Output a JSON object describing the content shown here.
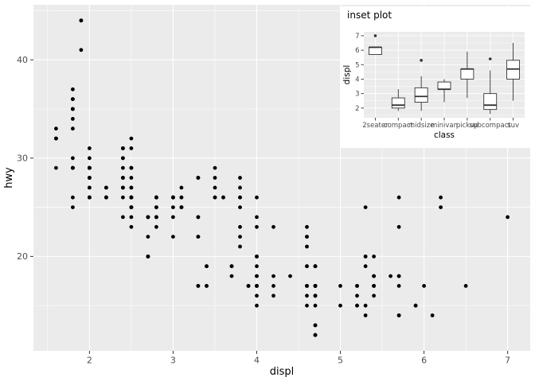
{
  "colors": {
    "figure_bg": "#FFFFFF",
    "panel_bg": "#EBEBEB",
    "grid_major": "#FFFFFF",
    "grid_minor": "#FFFFFF",
    "tick_text": "#4D4D4D",
    "tick_mark": "#333333",
    "axis_title": "#000000",
    "point": "#000000",
    "box_stroke": "#333333",
    "box_fill": "#FFFFFF",
    "inset_bg": "#FFFFFF"
  },
  "chart_data": [
    {
      "id": "main-scatter",
      "type": "scatter",
      "title": "",
      "xlabel": "displ",
      "ylabel": "hwy",
      "xlim": [
        1.33,
        7.27
      ],
      "ylim": [
        10.4,
        45.6
      ],
      "x_ticks": [
        2,
        3,
        4,
        5,
        6,
        7
      ],
      "x_minor": [
        1.5,
        2.5,
        3.5,
        4.5,
        5.5,
        6.5
      ],
      "y_ticks": [
        20,
        30,
        40
      ],
      "y_minor": [
        15,
        25,
        35,
        45
      ],
      "grid": true,
      "legend": false,
      "points": [
        [
          1.8,
          29
        ],
        [
          1.8,
          29
        ],
        [
          2.0,
          31
        ],
        [
          2.0,
          30
        ],
        [
          2.8,
          26
        ],
        [
          2.8,
          26
        ],
        [
          3.1,
          27
        ],
        [
          1.8,
          26
        ],
        [
          1.8,
          25
        ],
        [
          2.0,
          28
        ],
        [
          2.0,
          27
        ],
        [
          2.8,
          25
        ],
        [
          2.8,
          25
        ],
        [
          3.1,
          25
        ],
        [
          3.1,
          25
        ],
        [
          2.8,
          24
        ],
        [
          3.1,
          25
        ],
        [
          4.2,
          23
        ],
        [
          5.3,
          20
        ],
        [
          5.3,
          15
        ],
        [
          5.3,
          20
        ],
        [
          5.7,
          17
        ],
        [
          6.0,
          17
        ],
        [
          5.7,
          26
        ],
        [
          5.7,
          23
        ],
        [
          6.2,
          26
        ],
        [
          6.2,
          25
        ],
        [
          7.0,
          24
        ],
        [
          5.3,
          14
        ],
        [
          5.3,
          19
        ],
        [
          5.7,
          14
        ],
        [
          6.5,
          17
        ],
        [
          2.4,
          27
        ],
        [
          2.4,
          30
        ],
        [
          3.1,
          26
        ],
        [
          3.5,
          29
        ],
        [
          3.6,
          26
        ],
        [
          2.4,
          24
        ],
        [
          3.0,
          24
        ],
        [
          3.3,
          22
        ],
        [
          3.3,
          22
        ],
        [
          3.3,
          24
        ],
        [
          3.3,
          24
        ],
        [
          3.3,
          17
        ],
        [
          3.8,
          22
        ],
        [
          3.8,
          21
        ],
        [
          3.8,
          23
        ],
        [
          4.0,
          23
        ],
        [
          3.7,
          19
        ],
        [
          3.7,
          18
        ],
        [
          3.9,
          17
        ],
        [
          3.9,
          17
        ],
        [
          4.7,
          19
        ],
        [
          4.7,
          19
        ],
        [
          4.7,
          12
        ],
        [
          5.2,
          17
        ],
        [
          5.2,
          15
        ],
        [
          3.9,
          17
        ],
        [
          4.7,
          17
        ],
        [
          4.7,
          12
        ],
        [
          4.7,
          17
        ],
        [
          4.7,
          16
        ],
        [
          5.2,
          17
        ],
        [
          5.9,
          15
        ],
        [
          4.7,
          17
        ],
        [
          4.7,
          15
        ],
        [
          4.7,
          13
        ],
        [
          4.7,
          13
        ],
        [
          4.7,
          17
        ],
        [
          4.7,
          16
        ],
        [
          5.2,
          15
        ],
        [
          5.2,
          16
        ],
        [
          5.7,
          18
        ],
        [
          5.9,
          15
        ],
        [
          4.6,
          17
        ],
        [
          5.4,
          17
        ],
        [
          5.4,
          18
        ],
        [
          4.0,
          17
        ],
        [
          4.0,
          16
        ],
        [
          4.0,
          18
        ],
        [
          4.0,
          17
        ],
        [
          4.6,
          19
        ],
        [
          5.0,
          15
        ],
        [
          4.2,
          17
        ],
        [
          4.2,
          16
        ],
        [
          4.6,
          17
        ],
        [
          4.6,
          17
        ],
        [
          4.6,
          16
        ],
        [
          5.4,
          17
        ],
        [
          3.8,
          26
        ],
        [
          3.8,
          25
        ],
        [
          4.0,
          26
        ],
        [
          4.0,
          24
        ],
        [
          4.6,
          21
        ],
        [
          4.6,
          22
        ],
        [
          4.6,
          23
        ],
        [
          4.6,
          22
        ],
        [
          5.4,
          20
        ],
        [
          1.6,
          33
        ],
        [
          1.6,
          32
        ],
        [
          1.6,
          32
        ],
        [
          1.6,
          29
        ],
        [
          1.6,
          32
        ],
        [
          1.8,
          34
        ],
        [
          1.8,
          36
        ],
        [
          1.8,
          36
        ],
        [
          2.0,
          29
        ],
        [
          2.4,
          26
        ],
        [
          2.4,
          27
        ],
        [
          2.4,
          30
        ],
        [
          2.4,
          31
        ],
        [
          2.5,
          26
        ],
        [
          2.5,
          26
        ],
        [
          3.3,
          28
        ],
        [
          2.0,
          26
        ],
        [
          2.0,
          29
        ],
        [
          2.0,
          28
        ],
        [
          2.0,
          27
        ],
        [
          2.7,
          24
        ],
        [
          2.7,
          24
        ],
        [
          2.7,
          24
        ],
        [
          3.0,
          22
        ],
        [
          3.7,
          19
        ],
        [
          4.0,
          20
        ],
        [
          4.7,
          17
        ],
        [
          4.7,
          12
        ],
        [
          4.7,
          19
        ],
        [
          5.7,
          14
        ],
        [
          6.1,
          14
        ],
        [
          4.0,
          15
        ],
        [
          4.2,
          18
        ],
        [
          4.4,
          18
        ],
        [
          4.6,
          15
        ],
        [
          5.4,
          17
        ],
        [
          5.4,
          16
        ],
        [
          5.4,
          18
        ],
        [
          4.0,
          17
        ],
        [
          4.0,
          19
        ],
        [
          4.6,
          19
        ],
        [
          5.0,
          17
        ],
        [
          2.4,
          29
        ],
        [
          2.4,
          27
        ],
        [
          2.5,
          31
        ],
        [
          2.5,
          32
        ],
        [
          3.5,
          27
        ],
        [
          3.5,
          26
        ],
        [
          3.0,
          26
        ],
        [
          3.0,
          25
        ],
        [
          3.5,
          26
        ],
        [
          3.3,
          17
        ],
        [
          4.0,
          20
        ],
        [
          5.6,
          18
        ],
        [
          3.1,
          26
        ],
        [
          3.8,
          26
        ],
        [
          3.8,
          27
        ],
        [
          3.8,
          28
        ],
        [
          5.3,
          25
        ],
        [
          2.5,
          23
        ],
        [
          2.5,
          24
        ],
        [
          2.5,
          25
        ],
        [
          2.5,
          27
        ],
        [
          2.5,
          25
        ],
        [
          2.5,
          26
        ],
        [
          2.2,
          26
        ],
        [
          2.2,
          26
        ],
        [
          2.5,
          26
        ],
        [
          2.5,
          26
        ],
        [
          2.5,
          25
        ],
        [
          2.5,
          27
        ],
        [
          2.5,
          25
        ],
        [
          2.5,
          26
        ],
        [
          2.7,
          20
        ],
        [
          2.7,
          20
        ],
        [
          3.4,
          19
        ],
        [
          3.4,
          17
        ],
        [
          4.0,
          17
        ],
        [
          4.7,
          16
        ],
        [
          2.2,
          26
        ],
        [
          2.2,
          27
        ],
        [
          2.4,
          28
        ],
        [
          2.4,
          31
        ],
        [
          3.0,
          26
        ],
        [
          3.0,
          26
        ],
        [
          3.5,
          28
        ],
        [
          2.2,
          26
        ],
        [
          2.2,
          27
        ],
        [
          2.4,
          28
        ],
        [
          2.4,
          31
        ],
        [
          3.0,
          26
        ],
        [
          3.0,
          26
        ],
        [
          3.3,
          28
        ],
        [
          1.8,
          30
        ],
        [
          1.8,
          33
        ],
        [
          1.8,
          35
        ],
        [
          1.8,
          37
        ],
        [
          1.8,
          35
        ],
        [
          4.7,
          17
        ],
        [
          5.7,
          18
        ],
        [
          2.7,
          20
        ],
        [
          2.7,
          20
        ],
        [
          2.7,
          22
        ],
        [
          3.4,
          17
        ],
        [
          3.4,
          19
        ],
        [
          4.0,
          18
        ],
        [
          4.0,
          20
        ],
        [
          2.0,
          29
        ],
        [
          2.0,
          26
        ],
        [
          2.0,
          29
        ],
        [
          2.0,
          29
        ],
        [
          2.8,
          24
        ],
        [
          1.9,
          44
        ],
        [
          2.0,
          29
        ],
        [
          2.0,
          26
        ],
        [
          2.0,
          29
        ],
        [
          2.0,
          29
        ],
        [
          2.5,
          29
        ],
        [
          2.5,
          29
        ],
        [
          2.8,
          24
        ],
        [
          2.8,
          23
        ],
        [
          1.9,
          44
        ],
        [
          1.9,
          41
        ],
        [
          2.0,
          29
        ],
        [
          2.0,
          26
        ],
        [
          2.5,
          28
        ],
        [
          2.5,
          29
        ],
        [
          1.8,
          29
        ],
        [
          1.8,
          29
        ],
        [
          2.0,
          28
        ],
        [
          2.0,
          29
        ],
        [
          2.8,
          26
        ],
        [
          2.8,
          26
        ],
        [
          3.6,
          26
        ]
      ]
    },
    {
      "id": "inset-boxplot",
      "type": "boxplot",
      "title": "inset plot",
      "xlabel": "class",
      "ylabel": "displ",
      "ylim": [
        1.33,
        7.27
      ],
      "y_ticks": [
        2,
        3,
        4,
        5,
        6,
        7
      ],
      "y_minor": [
        1.5,
        2.5,
        3.5,
        4.5,
        5.5,
        6.5
      ],
      "categories": [
        "2seater",
        "compact",
        "midsize",
        "minivan",
        "pickup",
        "subcompact",
        "suv"
      ],
      "boxes": [
        {
          "class": "2seater",
          "whisker_low": 5.7,
          "q1": 5.7,
          "median": 6.2,
          "q3": 6.2,
          "whisker_high": 6.2,
          "outliers": [
            7.0
          ]
        },
        {
          "class": "compact",
          "whisker_low": 1.8,
          "q1": 2.0,
          "median": 2.2,
          "q3": 2.7,
          "whisker_high": 3.3,
          "outliers": []
        },
        {
          "class": "midsize",
          "whisker_low": 1.8,
          "q1": 2.4,
          "median": 2.8,
          "q3": 3.4,
          "whisker_high": 4.2,
          "outliers": [
            5.3
          ]
        },
        {
          "class": "minivan",
          "whisker_low": 2.4,
          "q1": 3.3,
          "median": 3.3,
          "q3": 3.8,
          "whisker_high": 4.0,
          "outliers": []
        },
        {
          "class": "pickup",
          "whisker_low": 2.7,
          "q1": 4.0,
          "median": 4.7,
          "q3": 4.7,
          "whisker_high": 5.9,
          "outliers": []
        },
        {
          "class": "subcompact",
          "whisker_low": 1.6,
          "q1": 1.9,
          "median": 2.2,
          "q3": 3.0,
          "whisker_high": 4.6,
          "outliers": [
            5.4
          ]
        },
        {
          "class": "suv",
          "whisker_low": 2.5,
          "q1": 4.0,
          "median": 4.7,
          "q3": 5.3,
          "whisker_high": 6.5,
          "outliers": []
        }
      ]
    }
  ]
}
